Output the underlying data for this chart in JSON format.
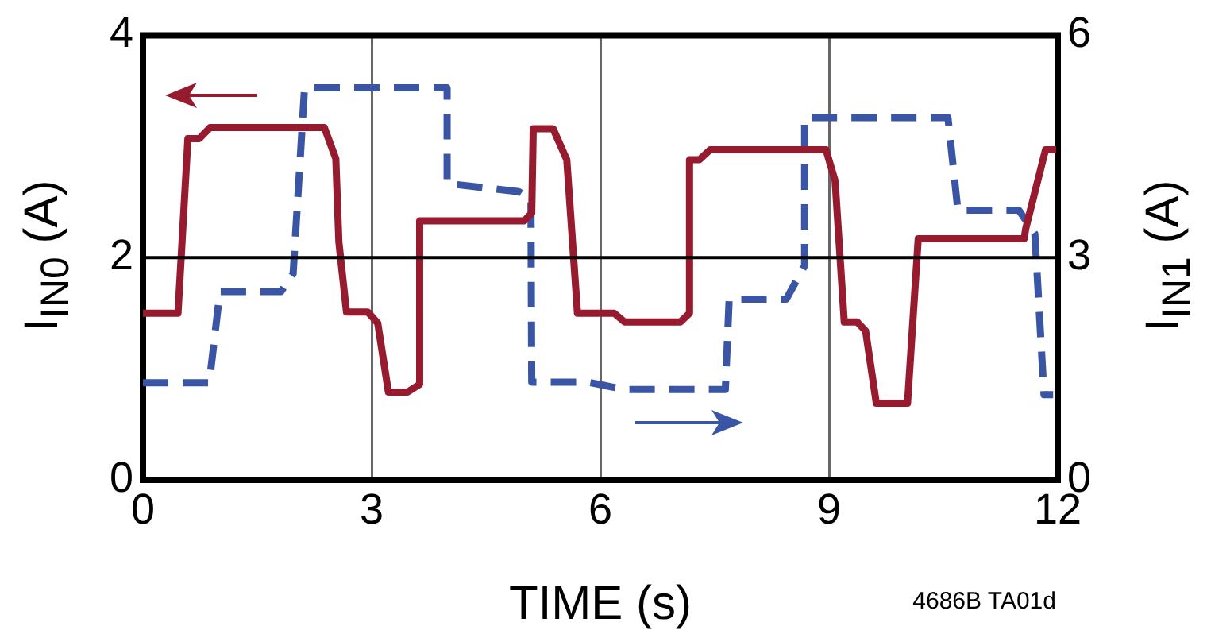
{
  "chart_data": {
    "type": "line",
    "xlabel": "TIME (s)",
    "ylabel": "I$_{IN0}$ (A)",
    "y2label": "I$_{IN1}$ (A)",
    "xlim": [
      0,
      12
    ],
    "xticks": [
      0,
      3,
      6,
      9,
      12
    ],
    "ylim": [
      0,
      4
    ],
    "yticks": [
      0,
      2,
      4
    ],
    "y2lim": [
      0,
      6
    ],
    "y2ticks": [
      0,
      3,
      6
    ],
    "grid": "x",
    "legend": false,
    "marker": "none",
    "ref_lines": [
      {
        "axis": "y",
        "value": 2,
        "color": "#000000"
      }
    ],
    "annotations": [
      "4686B TA01d"
    ],
    "series": [
      {
        "color": "#971b2f",
        "line_style": "solid",
        "x": [
          0,
          0.46,
          0.59,
          0.74,
          0.88,
          2.38,
          2.53,
          2.57,
          2.67,
          2.95,
          3.08,
          3.22,
          3.47,
          3.63,
          3.63,
          5.0,
          5.1,
          5.12,
          5.38,
          5.56,
          5.7,
          6.18,
          6.32,
          7.05,
          7.17,
          7.17,
          7.3,
          7.44,
          8.96,
          9.08,
          9.2,
          9.37,
          9.48,
          9.62,
          10.03,
          10.17,
          11.56,
          11.58,
          11.84,
          11.98
        ],
        "values": [
          1.5,
          1.5,
          3.07,
          3.07,
          3.17,
          3.17,
          2.89,
          2.14,
          1.51,
          1.51,
          1.41,
          0.79,
          0.79,
          0.86,
          2.33,
          2.33,
          2.4,
          3.16,
          3.16,
          2.88,
          1.5,
          1.5,
          1.42,
          1.42,
          1.5,
          2.88,
          2.88,
          2.97,
          2.97,
          2.69,
          1.42,
          1.42,
          1.34,
          0.69,
          0.69,
          2.17,
          2.17,
          2.26,
          2.97,
          2.97
        ]
      },
      {
        "color": "#3b55a5",
        "line_style": "dashed",
        "axis": "y2",
        "x": [
          0,
          0.87,
          1.01,
          1.81,
          1.97,
          2.12,
          3.99,
          3.99,
          4.93,
          5.09,
          5.1,
          5.83,
          6.32,
          7.64,
          7.69,
          8.44,
          8.68,
          8.68,
          10.56,
          10.69,
          11.49,
          11.7,
          11.82,
          11.94
        ],
        "values": [
          1.31,
          1.31,
          2.54,
          2.54,
          2.78,
          5.29,
          5.29,
          4.0,
          3.89,
          3.78,
          1.32,
          1.32,
          1.22,
          1.22,
          2.44,
          2.44,
          2.89,
          4.89,
          4.89,
          3.64,
          3.64,
          3.32,
          1.15,
          1.15
        ]
      }
    ]
  }
}
